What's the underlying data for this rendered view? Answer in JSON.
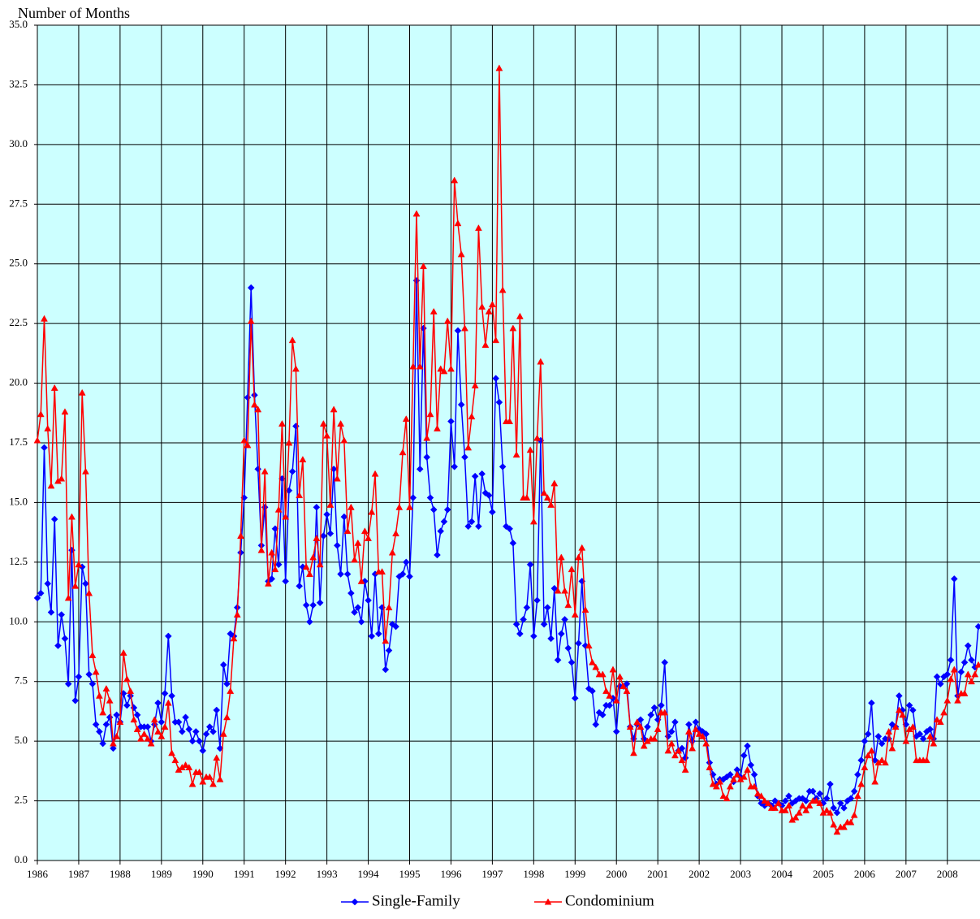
{
  "chart_data": {
    "type": "line",
    "y_label": "Number of Months",
    "categories": [
      "1986",
      null,
      null,
      null,
      null,
      null,
      null,
      null,
      null,
      null,
      null,
      null,
      "1987",
      null,
      null,
      null,
      null,
      null,
      null,
      null,
      null,
      null,
      null,
      null,
      "1988",
      null,
      null,
      null,
      null,
      null,
      null,
      null,
      null,
      null,
      null,
      null,
      "1989",
      null,
      null,
      null,
      null,
      null,
      null,
      null,
      null,
      null,
      null,
      null,
      "1990",
      null,
      null,
      null,
      null,
      null,
      null,
      null,
      null,
      null,
      null,
      null,
      "1991",
      null,
      null,
      null,
      null,
      null,
      null,
      null,
      null,
      null,
      null,
      null,
      "1992",
      null,
      null,
      null,
      null,
      null,
      null,
      null,
      null,
      null,
      null,
      null,
      "1993",
      null,
      null,
      null,
      null,
      null,
      null,
      null,
      null,
      null,
      null,
      null,
      "1994",
      null,
      null,
      null,
      null,
      null,
      null,
      null,
      null,
      null,
      null,
      null,
      "1995",
      null,
      null,
      null,
      null,
      null,
      null,
      null,
      null,
      null,
      null,
      null,
      "1996",
      null,
      null,
      null,
      null,
      null,
      null,
      null,
      null,
      null,
      null,
      null,
      "1997",
      null,
      null,
      null,
      null,
      null,
      null,
      null,
      null,
      null,
      null,
      null,
      "1998",
      null,
      null,
      null,
      null,
      null,
      null,
      null,
      null,
      null,
      null,
      null,
      "1999",
      null,
      null,
      null,
      null,
      null,
      null,
      null,
      null,
      null,
      null,
      null,
      "2000",
      null,
      null,
      null,
      null,
      null,
      null,
      null,
      null,
      null,
      null,
      null,
      "2001",
      null,
      null,
      null,
      null,
      null,
      null,
      null,
      null,
      null,
      null,
      null,
      "2002",
      null,
      null,
      null,
      null,
      null,
      null,
      null,
      null,
      null,
      null,
      null,
      "2003",
      null,
      null,
      null,
      null,
      null,
      null,
      null,
      null,
      null,
      null,
      null,
      "2004",
      null,
      null,
      null,
      null,
      null,
      null,
      null,
      null,
      null,
      null,
      null,
      "2005",
      null,
      null,
      null,
      null,
      null,
      null,
      null,
      null,
      null,
      null,
      null,
      "2006",
      null,
      null,
      null,
      null,
      null,
      null,
      null,
      null,
      null,
      null,
      null,
      "2007",
      null,
      null,
      null,
      null,
      null,
      null,
      null,
      null,
      null,
      null,
      null,
      "2008",
      null,
      null,
      null,
      null,
      null,
      null,
      null,
      null,
      null
    ],
    "series": [
      {
        "name": "Single-Family",
        "color": "#0000ff",
        "marker": "diamond",
        "values": [
          11.0,
          11.2,
          17.3,
          11.6,
          10.4,
          14.3,
          9.0,
          10.3,
          9.3,
          7.4,
          13.0,
          6.7,
          7.7,
          12.3,
          11.6,
          7.8,
          7.4,
          5.7,
          5.4,
          4.9,
          5.7,
          6.0,
          4.7,
          6.1,
          5.8,
          7.0,
          6.5,
          6.9,
          6.4,
          6.1,
          5.6,
          5.6,
          5.6,
          5.0,
          5.7,
          6.6,
          5.8,
          7.0,
          9.4,
          6.9,
          5.8,
          5.8,
          5.4,
          6.0,
          5.5,
          5.0,
          5.4,
          5.0,
          4.6,
          5.3,
          5.6,
          5.4,
          6.3,
          4.7,
          8.2,
          7.4,
          9.5,
          9.4,
          10.6,
          12.9,
          15.2,
          19.4,
          24.0,
          19.5,
          16.4,
          13.2,
          14.8,
          11.7,
          11.8,
          13.9,
          12.4,
          16.0,
          11.7,
          15.5,
          16.3,
          18.2,
          11.5,
          12.3,
          10.7,
          10.0,
          10.7,
          14.8,
          10.8,
          13.6,
          14.5,
          13.7,
          16.4,
          13.2,
          12.0,
          14.4,
          12.0,
          11.2,
          10.4,
          10.6,
          10.0,
          11.7,
          10.9,
          9.4,
          12.0,
          9.5,
          10.6,
          8.0,
          8.8,
          9.9,
          9.8,
          11.9,
          12.0,
          12.5,
          11.9,
          15.2,
          24.3,
          16.4,
          22.3,
          16.9,
          15.2,
          14.7,
          12.8,
          13.8,
          14.2,
          14.7,
          18.4,
          16.5,
          22.2,
          19.1,
          16.9,
          14.0,
          14.2,
          16.1,
          14.0,
          16.2,
          15.4,
          15.3,
          14.6,
          20.2,
          19.2,
          16.5,
          14.0,
          13.9,
          13.3,
          9.9,
          9.5,
          10.1,
          10.6,
          12.4,
          9.4,
          10.9,
          17.6,
          9.9,
          10.6,
          9.3,
          11.4,
          8.4,
          9.5,
          10.1,
          8.9,
          8.3,
          6.8,
          9.1,
          11.7,
          9.0,
          7.2,
          7.1,
          5.7,
          6.2,
          6.1,
          6.5,
          6.5,
          6.8,
          5.4,
          7.3,
          7.3,
          7.4,
          5.6,
          5.1,
          5.7,
          5.9,
          5.1,
          5.6,
          6.1,
          6.4,
          5.9,
          6.5,
          8.3,
          5.2,
          5.4,
          5.8,
          4.6,
          4.7,
          4.3,
          5.7,
          5.0,
          5.8,
          5.5,
          5.4,
          5.3,
          4.1,
          3.6,
          3.2,
          3.4,
          3.4,
          3.5,
          3.6,
          3.3,
          3.8,
          3.5,
          4.4,
          4.8,
          4.0,
          3.6,
          2.7,
          2.4,
          2.3,
          2.4,
          2.3,
          2.5,
          2.4,
          2.3,
          2.5,
          2.7,
          2.4,
          2.5,
          2.6,
          2.6,
          2.5,
          2.9,
          2.9,
          2.6,
          2.8,
          2.4,
          2.6,
          3.2,
          2.2,
          2.0,
          2.4,
          2.2,
          2.5,
          2.6,
          2.9,
          3.6,
          4.2,
          5.0,
          5.3,
          6.6,
          4.2,
          5.2,
          4.9,
          5.1,
          5.1,
          5.7,
          5.6,
          6.9,
          6.3,
          5.7,
          6.5,
          6.3,
          5.2,
          5.3,
          5.1,
          5.4,
          5.5,
          5.1,
          7.7,
          7.4,
          7.7,
          7.8,
          8.4,
          11.8,
          6.9,
          7.9,
          8.3,
          9.0,
          8.4,
          8.1,
          9.8
        ]
      },
      {
        "name": "Condominium",
        "color": "#ff0000",
        "marker": "triangle",
        "values": [
          17.6,
          18.7,
          22.7,
          18.1,
          15.7,
          19.8,
          15.9,
          16.0,
          18.8,
          11.0,
          14.4,
          11.5,
          12.4,
          19.6,
          16.3,
          11.2,
          8.6,
          7.9,
          6.9,
          6.2,
          7.2,
          6.7,
          4.9,
          5.2,
          5.8,
          8.7,
          7.6,
          7.1,
          5.9,
          5.5,
          5.1,
          5.3,
          5.1,
          4.9,
          5.9,
          5.4,
          5.2,
          5.6,
          6.6,
          4.5,
          4.2,
          3.8,
          3.9,
          4.0,
          3.9,
          3.2,
          3.7,
          3.7,
          3.3,
          3.5,
          3.5,
          3.2,
          4.3,
          3.4,
          5.3,
          6.0,
          7.1,
          9.3,
          10.3,
          13.6,
          17.6,
          17.4,
          22.6,
          19.1,
          18.9,
          13.0,
          16.3,
          11.6,
          12.9,
          12.2,
          14.7,
          18.3,
          14.4,
          17.5,
          21.8,
          20.6,
          15.3,
          16.8,
          12.3,
          12.0,
          12.7,
          13.5,
          12.4,
          18.3,
          17.8,
          14.9,
          18.9,
          16.0,
          18.3,
          17.6,
          13.8,
          14.8,
          12.6,
          13.3,
          11.7,
          13.8,
          13.5,
          14.6,
          16.2,
          12.1,
          12.1,
          9.2,
          10.6,
          12.9,
          13.7,
          14.8,
          17.1,
          18.5,
          14.8,
          20.7,
          27.1,
          20.7,
          24.9,
          17.7,
          18.7,
          23.0,
          18.1,
          20.6,
          20.5,
          22.6,
          20.6,
          28.5,
          26.7,
          25.4,
          22.3,
          17.3,
          18.6,
          19.9,
          26.5,
          23.2,
          21.6,
          23.0,
          23.3,
          21.8,
          33.2,
          23.9,
          18.4,
          18.4,
          22.3,
          17.0,
          22.8,
          15.2,
          15.2,
          17.2,
          14.2,
          17.7,
          20.9,
          15.4,
          15.2,
          14.9,
          15.8,
          11.3,
          12.7,
          11.3,
          10.7,
          12.2,
          10.3,
          12.7,
          13.1,
          10.5,
          9.0,
          8.3,
          8.1,
          7.8,
          7.8,
          7.1,
          6.9,
          8.0,
          6.7,
          7.7,
          7.3,
          7.1,
          5.6,
          4.5,
          5.8,
          5.6,
          4.8,
          5.0,
          5.1,
          5.1,
          5.5,
          6.2,
          6.2,
          4.6,
          4.9,
          4.4,
          4.6,
          4.2,
          3.8,
          5.4,
          4.7,
          5.5,
          5.3,
          5.2,
          4.9,
          3.9,
          3.2,
          3.1,
          3.3,
          2.7,
          2.6,
          3.1,
          3.4,
          3.6,
          3.4,
          3.5,
          3.8,
          3.1,
          3.1,
          2.8,
          2.7,
          2.5,
          2.4,
          2.2,
          2.2,
          2.4,
          2.1,
          2.1,
          2.3,
          1.7,
          1.8,
          2.0,
          2.3,
          2.1,
          2.3,
          2.5,
          2.5,
          2.4,
          2.0,
          2.1,
          2.0,
          1.5,
          1.2,
          1.4,
          1.4,
          1.6,
          1.6,
          1.9,
          2.7,
          3.2,
          3.9,
          4.4,
          4.6,
          3.3,
          4.1,
          4.2,
          4.1,
          5.4,
          4.7,
          5.6,
          6.3,
          6.1,
          5.0,
          5.5,
          5.6,
          4.2,
          4.2,
          4.2,
          4.2,
          5.2,
          4.9,
          5.9,
          5.8,
          6.2,
          6.7,
          7.6,
          8.0,
          6.7,
          7.0,
          7.0,
          7.8,
          7.5,
          7.8,
          8.2
        ]
      }
    ],
    "ylim": [
      0,
      35
    ],
    "yticks": [
      {
        "value": 0,
        "label": "0.0"
      },
      {
        "value": 2.5,
        "label": "2.5"
      },
      {
        "value": 5,
        "label": "5.0"
      },
      {
        "value": 7.5,
        "label": "7.5"
      },
      {
        "value": 10,
        "label": "10.0"
      },
      {
        "value": 12.5,
        "label": "12.5"
      },
      {
        "value": 15,
        "label": "15.0"
      },
      {
        "value": 17.5,
        "label": "17.5"
      },
      {
        "value": 20,
        "label": "20.0"
      },
      {
        "value": 22.5,
        "label": "22.5"
      },
      {
        "value": 25,
        "label": "25.0"
      },
      {
        "value": 27.5,
        "label": "27.5"
      },
      {
        "value": 30,
        "label": "30.0"
      },
      {
        "value": 32.5,
        "label": "32.5"
      },
      {
        "value": 35,
        "label": "35.0"
      }
    ],
    "grid": true,
    "legend": "bottom",
    "plot_background": "#ccffff"
  }
}
